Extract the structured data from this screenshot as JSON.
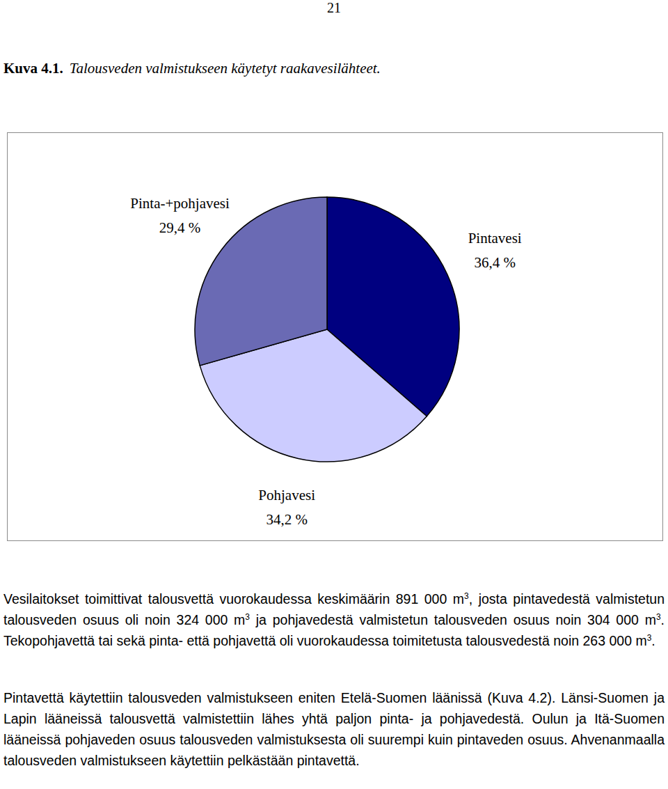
{
  "page_number": "21",
  "caption": {
    "label": "Kuva 4.1.",
    "text": "Talousveden valmistukseen käytetyt raakavesilähteet."
  },
  "chart_data": {
    "type": "pie",
    "categories": [
      "Pintavesi",
      "Pohjavesi",
      "Pinta-+pohjavesi"
    ],
    "values": [
      36.4,
      34.2,
      29.4
    ],
    "value_labels": [
      "36,4 %",
      "34,2 %",
      "29,4 %"
    ],
    "colors": [
      "#000080",
      "#ccccff",
      "#6a6ab4"
    ],
    "data_labels": true
  },
  "paragraphs": [
    [
      "Vesilaitokset toimittivat talousvettä vuorokaudessa keskimäärin 891 000 m",
      {
        "sup": "3"
      },
      ", josta pintavedestä valmistetun talousveden osuus oli noin 324 000 m",
      {
        "sup": "3"
      },
      " ja pohjavedestä valmistetun talousveden osuus noin 304 000 m",
      {
        "sup": "3"
      },
      ". Tekopohjavettä tai sekä pinta- että pohjavettä oli vuorokaudessa toimitetusta talousvedestä noin 263 000 m",
      {
        "sup": "3"
      },
      "."
    ],
    [
      "Pintavettä käytettiin talousveden valmistukseen eniten Etelä-Suomen läänissä (Kuva 4.2). Länsi-Suomen ja Lapin lääneissä talousvettä valmistettiin lähes yhtä paljon pinta- ja pohjavedestä. Oulun ja Itä-Suomen lääneissä pohjaveden osuus talousveden valmistuksesta oli suurempi kuin pintaveden osuus. Ahvenanmaalla talousveden valmistukseen käytettiin pelkästään pintavettä."
    ]
  ]
}
